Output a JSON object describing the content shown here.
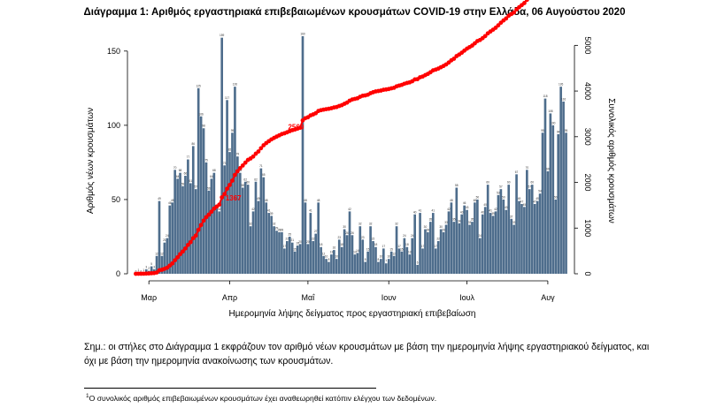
{
  "chart_data": {
    "type": "bar+line",
    "title": "Διάγραμμα 1: Αριθμός εργαστηριακά επιβεβαιωμένων κρουσμάτων COVID-19 στην Ελλάδα, 06 Αυγούστου 2020",
    "xlabel": "Ημερομηνία λήψης δείγματος προς εργαστηριακή επιβεβαίωση",
    "ylabel_left": "Αριθμός νέων κρουσμάτων",
    "ylabel_right": "Συνολικός αριθμός κρουσμάτων",
    "ylim_left": [
      0,
      160
    ],
    "ylim_right": [
      0,
      5200
    ],
    "yticks_left": [
      "0",
      "50",
      "100",
      "150"
    ],
    "yticks_right": [
      "0",
      "1000",
      "2000",
      "3000",
      "4000",
      "5000"
    ],
    "xticks": [
      {
        "day": 5,
        "label": "Μαρ"
      },
      {
        "day": 36,
        "label": "Απρ"
      },
      {
        "day": 66,
        "label": "Μαΐ"
      },
      {
        "day": 97,
        "label": "Ιουν"
      },
      {
        "day": 127,
        "label": "Ιουλ"
      },
      {
        "day": 158,
        "label": "Αυγ"
      }
    ],
    "bar_color": "#4e6d8c",
    "line_color": "#ff0000",
    "bar_series": {
      "name": "new cases",
      "values": [
        0,
        1,
        0,
        1,
        3,
        2,
        5,
        3,
        12,
        49,
        12,
        21,
        24,
        46,
        48,
        70,
        64,
        68,
        59,
        66,
        77,
        61,
        86,
        57,
        125,
        106,
        98,
        75,
        56,
        64,
        68,
        44,
        42,
        159,
        73,
        117,
        82,
        95,
        126,
        79,
        68,
        58,
        62,
        60,
        32,
        42,
        62,
        49,
        71,
        65,
        48,
        41,
        39,
        32,
        29,
        28,
        28,
        17,
        22,
        25,
        21,
        15,
        19,
        20,
        160,
        48,
        20,
        41,
        22,
        27,
        48,
        18,
        12,
        10,
        8,
        13,
        16,
        10,
        23,
        18,
        30,
        26,
        42,
        26,
        13,
        14,
        32,
        23,
        8,
        15,
        32,
        22,
        18,
        8,
        10,
        17,
        7,
        10,
        15,
        12,
        32,
        17,
        15,
        24,
        18,
        13,
        24,
        40,
        6,
        41,
        17,
        30,
        28,
        35,
        41,
        17,
        22,
        30,
        28,
        33,
        42,
        48,
        35,
        58,
        34,
        40,
        46,
        43,
        33,
        35,
        48,
        50,
        24,
        40,
        45,
        60,
        41,
        39,
        42,
        53,
        57,
        50,
        43,
        60,
        37,
        33,
        67,
        49,
        47,
        45,
        70,
        57,
        60,
        47,
        49,
        54,
        95,
        118,
        69,
        108,
        100,
        50,
        94,
        126,
        116,
        95
      ]
    },
    "line_series": {
      "name": "cumulative",
      "labels": [
        {
          "day": 31,
          "text": "1367"
        },
        {
          "day": 55,
          "text": "2560"
        },
        {
          "day": 160,
          "text": "5123"
        }
      ]
    }
  },
  "note": "Σημ.: οι στήλες στο Διάγραμμα 1 εκφράζουν τον αριθμό νέων κρουσμάτων με βάση την ημερομηνία λήψης εργαστηριακού δείγματος, και όχι με βάση την ημερομηνία ανακοίνωσης των κρουσμάτων.",
  "footnote": {
    "marker": "1",
    "text": "Ο συνολικός αριθμός επιβεβαιωμένων κρουσμάτων έχει αναθεωρηθεί κατόπιν ελέγχου των δεδομένων."
  }
}
